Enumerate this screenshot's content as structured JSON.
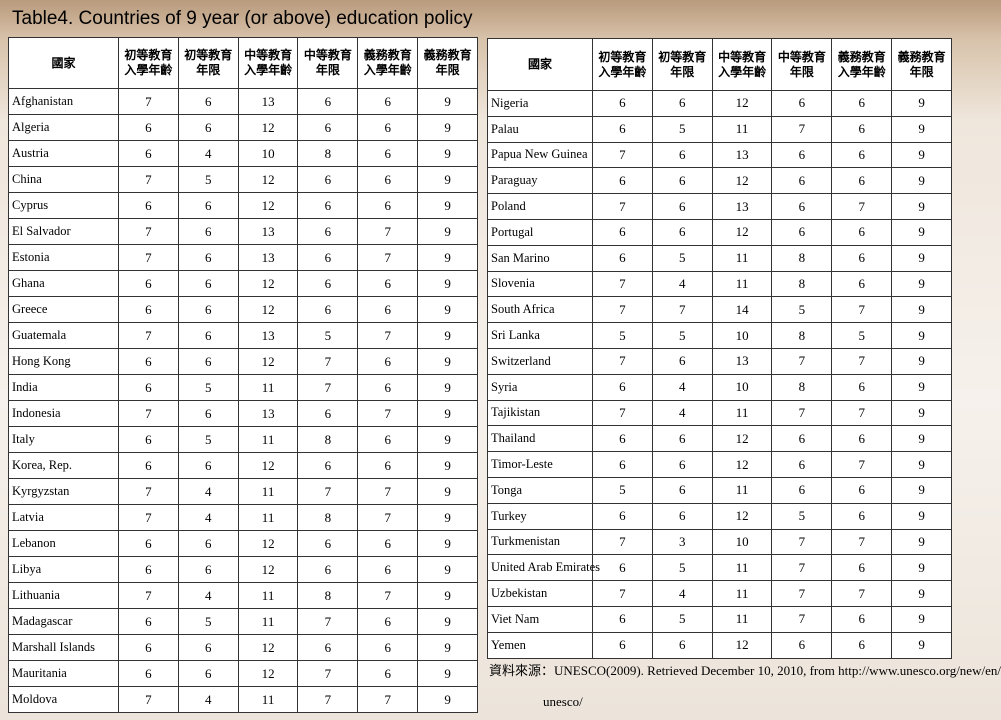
{
  "title": "Table4. Countries of 9 year (or above) education policy",
  "tables": [
    {
      "header": [
        [
          "國家"
        ],
        [
          "初等教育",
          "入學年齡"
        ],
        [
          "初等教育",
          "年限"
        ],
        [
          "中等教育",
          "入學年齡"
        ],
        [
          "中等教育",
          "年限"
        ],
        [
          "義務教育",
          "入學年齡"
        ],
        [
          "義務教育",
          "年限"
        ]
      ],
      "rows": [
        [
          "Afghanistan",
          7,
          6,
          13,
          6,
          6,
          9
        ],
        [
          "Algeria",
          6,
          6,
          12,
          6,
          6,
          9
        ],
        [
          "Austria",
          6,
          4,
          10,
          8,
          6,
          9
        ],
        [
          "China",
          7,
          5,
          12,
          6,
          6,
          9
        ],
        [
          "Cyprus",
          6,
          6,
          12,
          6,
          6,
          9
        ],
        [
          "El Salvador",
          7,
          6,
          13,
          6,
          7,
          9
        ],
        [
          "Estonia",
          7,
          6,
          13,
          6,
          7,
          9
        ],
        [
          "Ghana",
          6,
          6,
          12,
          6,
          6,
          9
        ],
        [
          "Greece",
          6,
          6,
          12,
          6,
          6,
          9
        ],
        [
          "Guatemala",
          7,
          6,
          13,
          5,
          7,
          9
        ],
        [
          "Hong Kong",
          6,
          6,
          12,
          7,
          6,
          9
        ],
        [
          "India",
          6,
          5,
          11,
          7,
          6,
          9
        ],
        [
          "Indonesia",
          7,
          6,
          13,
          6,
          7,
          9
        ],
        [
          "Italy",
          6,
          5,
          11,
          8,
          6,
          9
        ],
        [
          "Korea, Rep.",
          6,
          6,
          12,
          6,
          6,
          9
        ],
        [
          "Kyrgyzstan",
          7,
          4,
          11,
          7,
          7,
          9
        ],
        [
          "Latvia",
          7,
          4,
          11,
          8,
          7,
          9
        ],
        [
          "Lebanon",
          6,
          6,
          12,
          6,
          6,
          9
        ],
        [
          "Libya",
          6,
          6,
          12,
          6,
          6,
          9
        ],
        [
          "Lithuania",
          7,
          4,
          11,
          8,
          7,
          9
        ],
        [
          "Madagascar",
          6,
          5,
          11,
          7,
          6,
          9
        ],
        [
          "Marshall Islands",
          6,
          6,
          12,
          6,
          6,
          9
        ],
        [
          "Mauritania",
          6,
          6,
          12,
          7,
          6,
          9
        ],
        [
          "Moldova",
          7,
          4,
          11,
          7,
          7,
          9
        ]
      ]
    },
    {
      "header": [
        [
          "國家"
        ],
        [
          "初等教育",
          "入學年齡"
        ],
        [
          "初等教育",
          "年限"
        ],
        [
          "中等教育",
          "入學年齡"
        ],
        [
          "中等教育",
          "年限"
        ],
        [
          "義務教育",
          "入學年齡"
        ],
        [
          "義務教育",
          "年限"
        ]
      ],
      "rows": [
        [
          "Nigeria",
          6,
          6,
          12,
          6,
          6,
          9
        ],
        [
          "Palau",
          6,
          5,
          11,
          7,
          6,
          9
        ],
        [
          "Papua New Guinea",
          7,
          6,
          13,
          6,
          6,
          9
        ],
        [
          "Paraguay",
          6,
          6,
          12,
          6,
          6,
          9
        ],
        [
          "Poland",
          7,
          6,
          13,
          6,
          7,
          9
        ],
        [
          "Portugal",
          6,
          6,
          12,
          6,
          6,
          9
        ],
        [
          "San Marino",
          6,
          5,
          11,
          8,
          6,
          9
        ],
        [
          "Slovenia",
          7,
          4,
          11,
          8,
          6,
          9
        ],
        [
          "South Africa",
          7,
          7,
          14,
          5,
          7,
          9
        ],
        [
          "Sri Lanka",
          5,
          5,
          10,
          8,
          5,
          9
        ],
        [
          "Switzerland",
          7,
          6,
          13,
          7,
          7,
          9
        ],
        [
          "Syria",
          6,
          4,
          10,
          8,
          6,
          9
        ],
        [
          "Tajikistan",
          7,
          4,
          11,
          7,
          7,
          9
        ],
        [
          "Thailand",
          6,
          6,
          12,
          6,
          6,
          9
        ],
        [
          "Timor-Leste",
          6,
          6,
          12,
          6,
          7,
          9
        ],
        [
          "Tonga",
          5,
          6,
          11,
          6,
          6,
          9
        ],
        [
          "Turkey",
          6,
          6,
          12,
          5,
          6,
          9
        ],
        [
          "Turkmenistan",
          7,
          3,
          10,
          7,
          7,
          9
        ],
        [
          "United Arab Emirates",
          6,
          5,
          11,
          7,
          6,
          9
        ],
        [
          "Uzbekistan",
          7,
          4,
          11,
          7,
          7,
          9
        ],
        [
          "Viet Nam",
          6,
          5,
          11,
          7,
          6,
          9
        ],
        [
          "Yemen",
          6,
          6,
          12,
          6,
          6,
          9
        ]
      ]
    }
  ],
  "source": [
    "資料來源：UNESCO(2009). Retrieved December 10, 2010, from http://www.unesco.org/new/en/",
    "unesco/"
  ]
}
